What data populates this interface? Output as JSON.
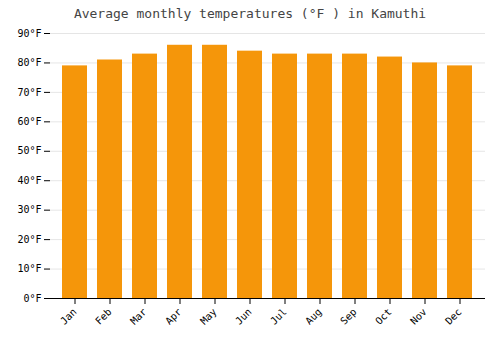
{
  "chart_data": {
    "type": "bar",
    "title": "Average monthly temperatures (°F ) in Kamuthi",
    "categories": [
      "Jan",
      "Feb",
      "Mar",
      "Apr",
      "May",
      "Jun",
      "Jul",
      "Aug",
      "Sep",
      "Oct",
      "Nov",
      "Dec"
    ],
    "values": [
      79,
      81,
      83,
      86,
      86,
      84,
      83,
      83,
      83,
      82,
      80,
      79
    ],
    "color": "#F5960A",
    "ylim": [
      0,
      90
    ],
    "yticks": [
      {
        "value": 0,
        "label": "0°F"
      },
      {
        "value": 10,
        "label": "10°F"
      },
      {
        "value": 20,
        "label": "20°F"
      },
      {
        "value": 30,
        "label": "30°F"
      },
      {
        "value": 40,
        "label": "40°F"
      },
      {
        "value": 50,
        "label": "50°F"
      },
      {
        "value": 60,
        "label": "60°F"
      },
      {
        "value": 70,
        "label": "70°F"
      },
      {
        "value": 80,
        "label": "80°F"
      },
      {
        "value": 90,
        "label": "90°F"
      }
    ],
    "grid": true
  }
}
